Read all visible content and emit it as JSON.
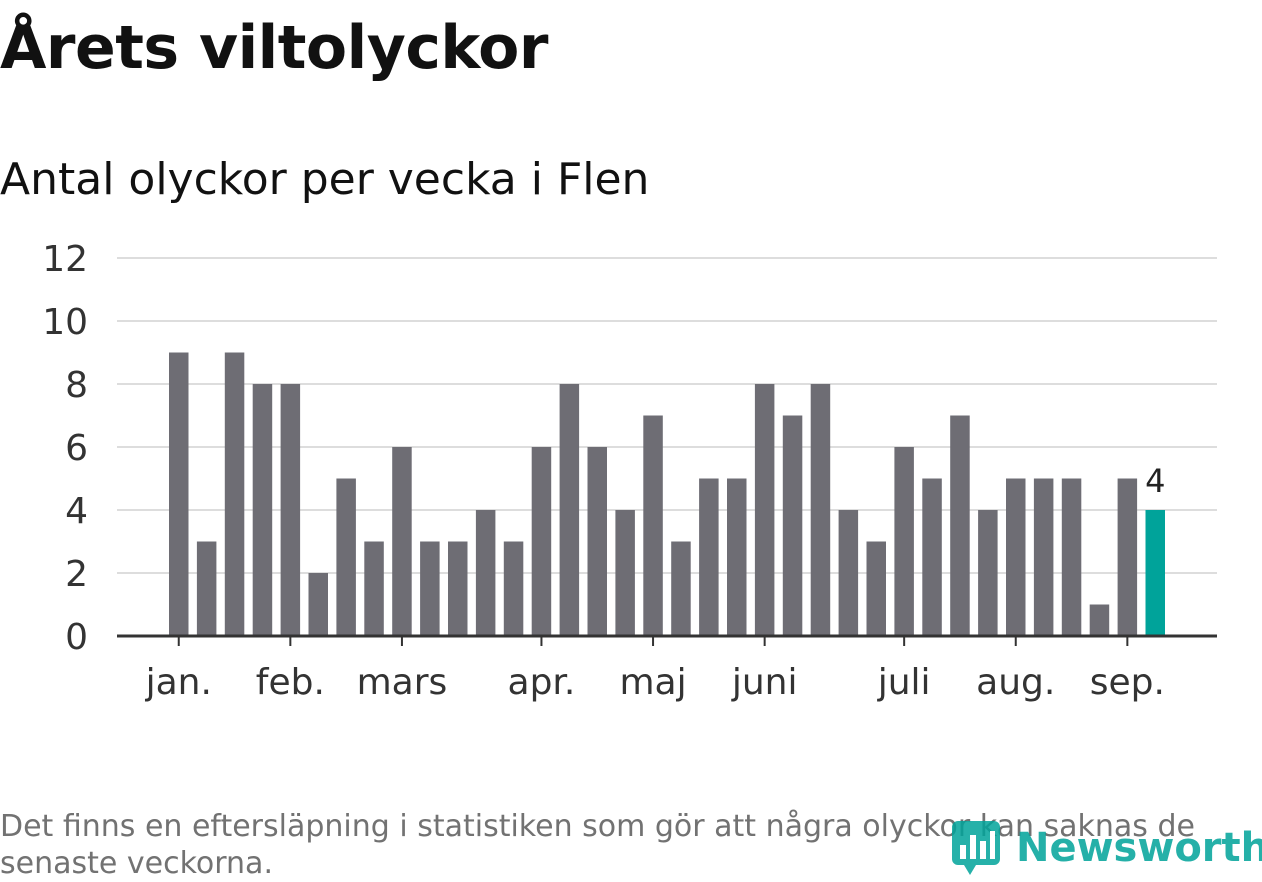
{
  "title": "Årets viltolyckor",
  "subtitle": "Antal olyckor per vecka i Flen",
  "footnote": "Det finns en eftersläpning i statistiken som gör att några olyckor kan saknas de senaste veckorna.",
  "brand": {
    "name": "Newsworthy",
    "icon": "newsworthy-logo-icon",
    "color": "#00a39a"
  },
  "chart_data": {
    "type": "bar",
    "title": "Årets viltolyckor",
    "subtitle": "Antal olyckor per vecka i Flen",
    "ylim": [
      0,
      12
    ],
    "yticks": [
      0,
      2,
      4,
      6,
      8,
      10,
      12
    ],
    "grid": true,
    "x_tick_labels": [
      "jan.",
      "feb.",
      "mars",
      "apr.",
      "maj",
      "juni",
      "juli",
      "aug.",
      "sep."
    ],
    "x_tick_weeks": [
      1,
      5,
      9,
      14,
      18,
      22,
      27,
      31,
      35
    ],
    "weeks": [
      1,
      2,
      3,
      4,
      5,
      6,
      7,
      8,
      9,
      10,
      11,
      12,
      13,
      14,
      15,
      16,
      17,
      18,
      19,
      20,
      21,
      22,
      23,
      24,
      25,
      26,
      27,
      28,
      29,
      30,
      31,
      32,
      33,
      34,
      35,
      36
    ],
    "values": [
      9,
      3,
      9,
      8,
      8,
      2,
      5,
      3,
      6,
      3,
      3,
      4,
      3,
      6,
      8,
      6,
      4,
      7,
      3,
      5,
      5,
      8,
      7,
      8,
      4,
      3,
      6,
      5,
      7,
      4,
      5,
      5,
      5,
      1,
      5,
      4
    ],
    "highlight_index": 35,
    "highlight_label": "4",
    "colors": {
      "bar": "#6e6d74",
      "highlight": "#00a39a",
      "grid": "#dddddd",
      "axis": "#333333"
    }
  }
}
